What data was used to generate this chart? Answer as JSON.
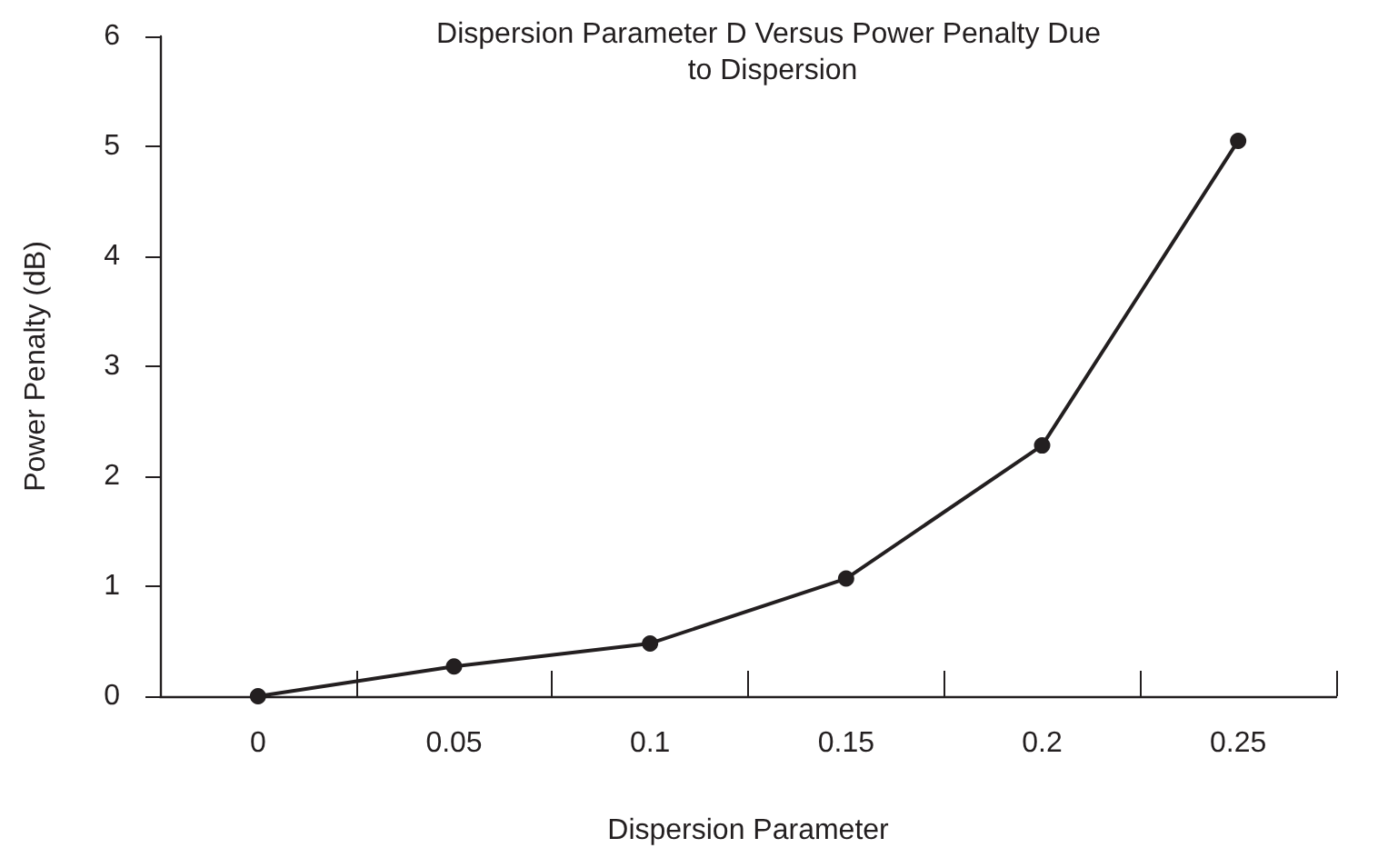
{
  "chart_data": {
    "type": "line",
    "title": "Dispersion Parameter D Versus Power Penalty Due to Dispersion",
    "xlabel": "Dispersion Parameter",
    "ylabel": "Power Penalty (dB)",
    "categories": [
      "0",
      "0.05",
      "0.1",
      "0.15",
      "0.2",
      "0.25"
    ],
    "series": [
      {
        "color": "#231f20",
        "values": [
          0,
          0.27,
          0.48,
          1.07,
          2.28,
          5.05
        ]
      }
    ],
    "ylim": [
      0,
      6
    ],
    "yticks": [
      0,
      1,
      2,
      3,
      4,
      5,
      6
    ],
    "grid": false,
    "legend": false,
    "marker": "circle",
    "line_style": "solid"
  }
}
